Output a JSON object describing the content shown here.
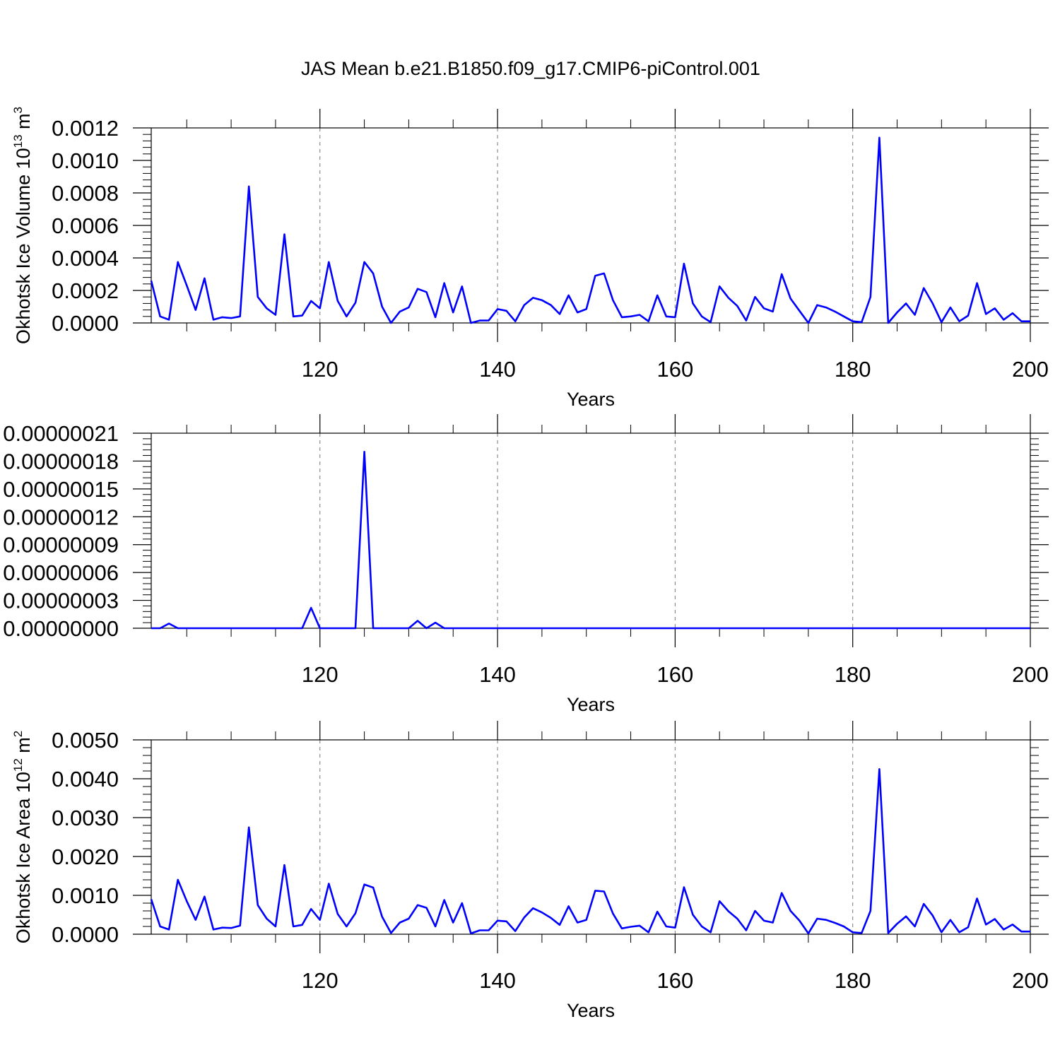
{
  "figure": {
    "title": "JAS Mean b.e21.B1850.f09_g17.CMIP6-piControl.001"
  },
  "chart_data": [
    {
      "type": "line",
      "xlabel": "Years",
      "ylabel": "Okhotsk Ice Volume 10",
      "ylabel_exp": "13",
      "ylabel_unit": " m",
      "ylabel_unit_exp": "3",
      "xlim": [
        101,
        200
      ],
      "ylim": [
        0,
        0.0012
      ],
      "xticks": [
        120,
        140,
        160,
        180,
        200
      ],
      "xtick_labels": [
        "120",
        "140",
        "160",
        "180",
        "200"
      ],
      "yticks": [
        0,
        0.0002,
        0.0004,
        0.0006,
        0.0008,
        0.001,
        0.0012
      ],
      "ytick_labels": [
        "0.0000",
        "0.0002",
        "0.0004",
        "0.0006",
        "0.0008",
        "0.0010",
        "0.0012"
      ],
      "grid": "vertical-dashed",
      "color": "#0000ff",
      "x_start": 101,
      "values": [
        0.00026,
        4e-05,
        2e-05,
        0.000375,
        0.00023,
        8e-05,
        0.000275,
        2e-05,
        3.5e-05,
        3e-05,
        4e-05,
        0.00084,
        0.00016,
        9e-05,
        5e-05,
        0.000545,
        4e-05,
        4.5e-05,
        0.000135,
        9e-05,
        0.000375,
        0.000135,
        4e-05,
        0.000125,
        0.000375,
        0.000305,
        0.0001,
        0.0,
        7e-05,
        9.5e-05,
        0.00021,
        0.00019,
        3.5e-05,
        0.000245,
        6.5e-05,
        0.000225,
        0.0,
        1.5e-05,
        1.5e-05,
        8.5e-05,
        7.5e-05,
        1e-05,
        0.00011,
        0.000155,
        0.00014,
        0.00011,
        5.5e-05,
        0.00017,
        6.5e-05,
        8.5e-05,
        0.00029,
        0.000305,
        0.00014,
        3.5e-05,
        4e-05,
        5e-05,
        1e-05,
        0.00017,
        4e-05,
        3.5e-05,
        0.000365,
        0.00012,
        4e-05,
        5e-06,
        0.000225,
        0.000155,
        0.000105,
        1.5e-05,
        0.00016,
        9e-05,
        7e-05,
        0.0003,
        0.00015,
        7.5e-05,
        0.0,
        0.00011,
        9.5e-05,
        7e-05,
        4e-05,
        1e-05,
        5e-06,
        0.00016,
        0.00114,
        0.0,
        6.5e-05,
        0.00012,
        5e-05,
        0.000215,
        0.00012,
        5e-06,
        9.5e-05,
        1e-05,
        4.5e-05,
        0.000245,
        5.5e-05,
        9e-05,
        2e-05,
        6e-05,
        1e-05,
        1e-05
      ]
    },
    {
      "type": "line",
      "xlabel": "Years",
      "ylabel": "",
      "xlim": [
        101,
        200
      ],
      "ylim": [
        0,
        2.1e-07
      ],
      "xticks": [
        120,
        140,
        160,
        180,
        200
      ],
      "xtick_labels": [
        "120",
        "140",
        "160",
        "180",
        "200"
      ],
      "yticks": [
        0,
        3e-08,
        6e-08,
        9e-08,
        1.2e-07,
        1.5e-07,
        1.8e-07,
        2.1e-07
      ],
      "ytick_labels": [
        "0.00000000",
        "0.00000003",
        "0.00000006",
        "0.00000009",
        "0.00000012",
        "0.00000015",
        "0.00000018",
        "0.00000021"
      ],
      "grid": "vertical-dashed",
      "color": "#0000ff",
      "x_start": 101,
      "values": [
        0,
        0,
        5e-09,
        0,
        0,
        0,
        0,
        0,
        0,
        0,
        0,
        0,
        0,
        0,
        0,
        0,
        0,
        0,
        2.2e-08,
        0,
        0,
        0,
        0,
        0,
        1.9e-07,
        0,
        0,
        0,
        0,
        0,
        8e-09,
        0,
        6e-09,
        0,
        0,
        0,
        0,
        0,
        0,
        0,
        0,
        0,
        0,
        0,
        0,
        0,
        0,
        0,
        0,
        0,
        0,
        0,
        0,
        0,
        0,
        0,
        0,
        0,
        0,
        0,
        0,
        0,
        0,
        0,
        0,
        0,
        0,
        0,
        0,
        0,
        0,
        0,
        0,
        0,
        0,
        0,
        0,
        0,
        0,
        0,
        0,
        0,
        0,
        0,
        0,
        0,
        0,
        0,
        0,
        0,
        0,
        0,
        0,
        0,
        0,
        0,
        0,
        0,
        0,
        0
      ]
    },
    {
      "type": "line",
      "xlabel": "Years",
      "ylabel": "Okhotsk Ice Area 10",
      "ylabel_exp": "12",
      "ylabel_unit": " m",
      "ylabel_unit_exp": "2",
      "xlim": [
        101,
        200
      ],
      "ylim": [
        0,
        0.005
      ],
      "xticks": [
        120,
        140,
        160,
        180,
        200
      ],
      "xtick_labels": [
        "120",
        "140",
        "160",
        "180",
        "200"
      ],
      "yticks": [
        0,
        0.001,
        0.002,
        0.003,
        0.004,
        0.005
      ],
      "ytick_labels": [
        "0.0000",
        "0.0010",
        "0.0020",
        "0.0030",
        "0.0040",
        "0.0050"
      ],
      "grid": "vertical-dashed",
      "color": "#0000ff",
      "x_start": 101,
      "values": [
        0.0009,
        0.0002,
        0.00012,
        0.0014,
        0.00085,
        0.00037,
        0.00097,
        0.00012,
        0.00017,
        0.00016,
        0.00022,
        0.00275,
        0.00075,
        0.0004,
        0.0002,
        0.00178,
        0.0002,
        0.00024,
        0.00065,
        0.00037,
        0.0013,
        0.00052,
        0.0002,
        0.00054,
        0.00128,
        0.0012,
        0.00045,
        3e-05,
        0.0003,
        0.0004,
        0.00075,
        0.00068,
        0.0002,
        0.00088,
        0.0003,
        0.0008,
        2e-05,
        0.0001,
        0.0001,
        0.00035,
        0.00033,
        8e-05,
        0.00043,
        0.00067,
        0.00056,
        0.00042,
        0.00024,
        0.00072,
        0.0003,
        0.00037,
        0.00112,
        0.0011,
        0.00053,
        0.00015,
        0.00019,
        0.00022,
        5e-05,
        0.00058,
        0.0002,
        0.00017,
        0.00121,
        0.0005,
        0.0002,
        5e-05,
        0.00085,
        0.00059,
        0.0004,
        0.0001,
        0.0006,
        0.00035,
        0.0003,
        0.00106,
        0.0006,
        0.00035,
        2e-05,
        0.0004,
        0.00037,
        0.00029,
        0.0002,
        5e-05,
        3e-05,
        0.0006,
        0.00425,
        3e-05,
        0.00027,
        0.00046,
        0.0002,
        0.00078,
        0.00048,
        5e-05,
        0.00037,
        5e-05,
        0.00018,
        0.00092,
        0.00025,
        0.00039,
        0.00012,
        0.00025,
        7e-05,
        7e-05
      ]
    }
  ]
}
